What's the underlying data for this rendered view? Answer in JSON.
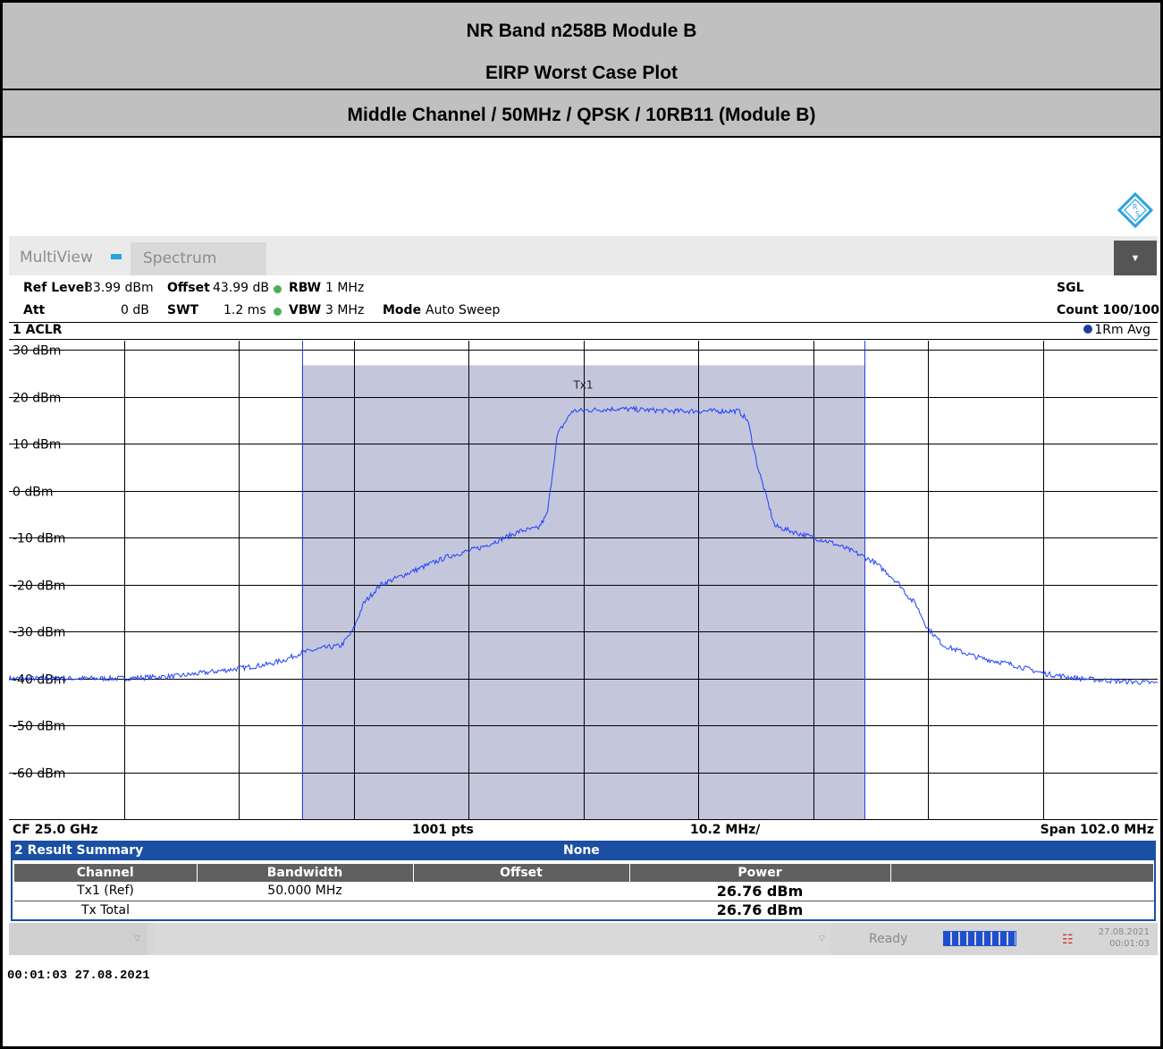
{
  "header": {
    "title": "NR Band n258B Module B",
    "subtitle": "EIRP Worst Case Plot",
    "config": "Middle Channel / 50MHz / QPSK / 10RB11 (Module B)"
  },
  "toolbar": {
    "multiview_label": "MultiView",
    "spectrum_tab": "Spectrum"
  },
  "params": {
    "ref_level_label": "Ref Level",
    "ref_level_value": "33.99 dBm",
    "offset_label": "Offset",
    "offset_value": "43.99 dB",
    "rbw_label": "RBW",
    "rbw_value": "1 MHz",
    "att_label": "Att",
    "att_value": "0 dB",
    "swt_label": "SWT",
    "swt_value": "1.2 ms",
    "vbw_label": "VBW",
    "vbw_value": "3 MHz",
    "mode_label": "Mode",
    "mode_value": "Auto Sweep",
    "sgl": "SGL",
    "count": "Count 100/100"
  },
  "window1": {
    "title": "1 ACLR",
    "trace_label": "1Rm Avg"
  },
  "chart_data": {
    "type": "line",
    "title": "1 ACLR",
    "xlabel": "",
    "ylabel": "",
    "x_center_ghz": 25.0,
    "x_span_mhz": 102.0,
    "xlim_mhz": [
      -51,
      51
    ],
    "ylim": [
      -70,
      32
    ],
    "y_ticks": [
      30,
      20,
      10,
      0,
      -10,
      -20,
      -30,
      -40,
      -50,
      -60
    ],
    "y_tick_labels": [
      "30 dBm",
      "20 dBm",
      "10 dBm",
      "0 dBm",
      "-10 dBm",
      "-20 dBm",
      "-30 dBm",
      "-40 dBm",
      "-50 dBm",
      "-60 dBm"
    ],
    "grid": true,
    "channel": {
      "name": "Tx1",
      "x_start_mhz": -25,
      "x_end_mhz": 25,
      "level_dbm": 26.76
    },
    "series": [
      {
        "name": "1Rm Avg",
        "x": [
          -51,
          -46,
          -41,
          -36,
          -31,
          -28,
          -26.5,
          -25,
          -23,
          -21.5,
          -20.5,
          -19.5,
          -18,
          -15,
          -12,
          -9,
          -7,
          -5.5,
          -4,
          -3.2,
          -2.3,
          -1,
          3,
          8,
          13.8,
          14.6,
          15.5,
          17,
          19,
          22,
          24,
          25.7,
          27,
          28.1,
          29,
          29.5,
          30.5,
          32,
          35,
          38,
          41,
          44,
          47,
          51
        ],
        "y": [
          -40,
          -40,
          -40,
          -39.5,
          -38,
          -37,
          -36,
          -34.5,
          -33.5,
          -33,
          -30,
          -24,
          -20,
          -17,
          -14,
          -12,
          -10,
          -8.5,
          -8,
          -5,
          12,
          17,
          17.5,
          17,
          17,
          15,
          5,
          -7.5,
          -9,
          -11,
          -13,
          -15,
          -17.5,
          -20,
          -23,
          -24,
          -29,
          -33,
          -35.5,
          -37,
          -39,
          -40,
          -40.5,
          -41
        ]
      }
    ],
    "x_footer": {
      "left": "CF 25.0 GHz",
      "center": "1001 pts",
      "div": "10.2 MHz/",
      "right": "Span 102.0 MHz"
    }
  },
  "result_summary": {
    "title": "2 Result Summary",
    "mode": "None",
    "columns": [
      "Channel",
      "Bandwidth",
      "Offset",
      "Power"
    ],
    "rows": [
      {
        "channel": "Tx1 (Ref)",
        "bandwidth": "50.000 MHz",
        "offset": "",
        "power": "26.76 dBm"
      },
      {
        "channel": "Tx Total",
        "bandwidth": "",
        "offset": "",
        "power": "26.76 dBm"
      }
    ]
  },
  "statusbar": {
    "status": "Ready",
    "date": "27.08.2021",
    "time": "00:01:03"
  },
  "timestamp": "00:01:03   27.08.2021",
  "colors": {
    "trace": "#1f3fff",
    "channel_fill": "#c4c6db",
    "channel_edge": "#2c3fd6",
    "summary_accent": "#1a4fa3"
  }
}
